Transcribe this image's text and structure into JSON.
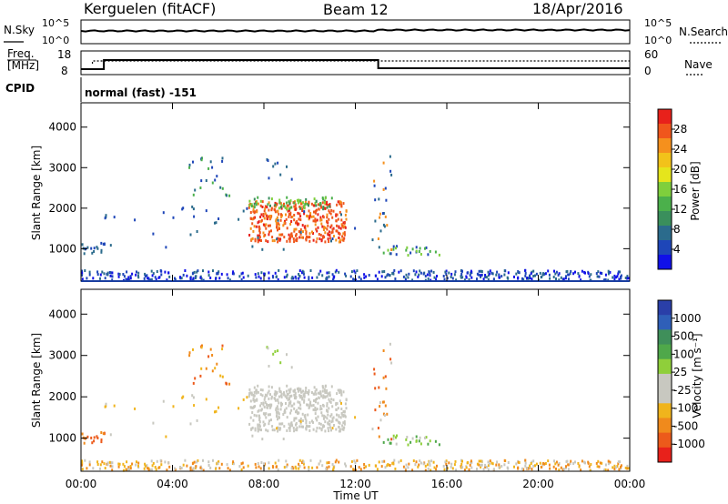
{
  "header": {
    "station": "Kerguelen (fitACF)",
    "beam": "Beam 12",
    "date": "18/Apr/2016"
  },
  "status_panels": {
    "nsky": {
      "label": "N.Sky",
      "ticks": [
        "10^5",
        "10^0"
      ]
    },
    "nsearch": {
      "label": "N.Search",
      "ticks": [
        "10^5",
        "10^0"
      ]
    },
    "freq": {
      "label_line1": "Freq.",
      "label_line2": "[MHz]",
      "ticks": [
        "18",
        "8"
      ]
    },
    "nave": {
      "label": "Nave",
      "ticks": [
        "60",
        "0"
      ]
    },
    "cpid": {
      "label": "CPID",
      "value": "normal (fast) -151"
    }
  },
  "chart_data": [
    {
      "type": "heatmap",
      "name": "power",
      "ylabel": "Slant Range [km]",
      "xlabel": "",
      "ylim": [
        200,
        4600
      ],
      "y_ticks": [
        "4000",
        "3000",
        "2000",
        "1000"
      ],
      "y_tick_values": [
        4000,
        3000,
        2000,
        1000
      ],
      "colorbar_label": "Power [dB]",
      "colorbar_ticks": [
        "28",
        "24",
        "20",
        "16",
        "12",
        "8",
        "4"
      ],
      "colorbar_colors": [
        "#e8211b",
        "#f0561c",
        "#f5901d",
        "#f2c21a",
        "#e5e51c",
        "#7fcf3c",
        "#4bb04b",
        "#3a8f5c",
        "#2b6b8c",
        "#1e46b8",
        "#1010e8"
      ]
    },
    {
      "type": "heatmap",
      "name": "velocity",
      "ylabel": "Slant Range [km]",
      "xlabel": "Time UT",
      "ylim": [
        200,
        4600
      ],
      "y_ticks": [
        "4000",
        "3000",
        "2000",
        "1000"
      ],
      "y_tick_values": [
        4000,
        3000,
        2000,
        1000
      ],
      "x_ticks": [
        "00:00",
        "04:00",
        "08:00",
        "12:00",
        "16:00",
        "20:00",
        "00:00"
      ],
      "x_tick_hours": [
        0,
        4,
        8,
        12,
        16,
        20,
        24
      ],
      "colorbar_label": "Velocity [m s⁻¹]",
      "colorbar_ticks": [
        "1000",
        "500",
        "100",
        "25",
        "-25",
        "-100",
        "-500",
        "-1000"
      ],
      "colorbar_colors": [
        "#2a3fa8",
        "#2f5fb8",
        "#3f8f5a",
        "#4fa84a",
        "#8fcf3a",
        "#c8c8c0",
        "#c8c8c0",
        "#f0b41c",
        "#f08a1c",
        "#ec5a1b",
        "#e8211b"
      ]
    }
  ]
}
